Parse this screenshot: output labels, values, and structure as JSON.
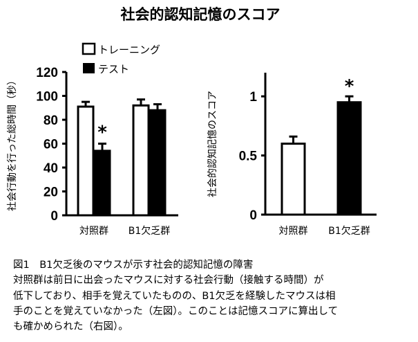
{
  "title": "社会的認知記憶のスコア",
  "chart_data": [
    {
      "type": "bar",
      "ylabel": "社会行動を行った総時間（秒）",
      "ylim": [
        0,
        120
      ],
      "yticks": [
        "0",
        "20",
        "40",
        "60",
        "80",
        "100",
        "120"
      ],
      "categories": [
        "対照群",
        "B1欠乏群"
      ],
      "legend": {
        "placement": "top-left",
        "entries": [
          "トレーニング",
          "テスト"
        ]
      },
      "series": [
        {
          "name": "トレーニング",
          "color": "#ffffff",
          "values": [
            91,
            92
          ],
          "errors": [
            4,
            5
          ]
        },
        {
          "name": "テスト",
          "color": "#000000",
          "values": [
            54,
            88
          ],
          "errors": [
            6,
            5
          ]
        }
      ],
      "annotations": [
        {
          "text": "*",
          "category": "対照群",
          "series": "テスト"
        }
      ]
    },
    {
      "type": "bar",
      "ylabel": "社会的認知記憶のスコア",
      "ylim": [
        0,
        1.2
      ],
      "yticks": [
        "0",
        "0.5",
        "1"
      ],
      "categories": [
        "対照群",
        "B1欠乏群"
      ],
      "values": [
        0.6,
        0.95
      ],
      "errors": [
        0.06,
        0.05
      ],
      "colors": [
        "#ffffff",
        "#000000"
      ],
      "annotations": [
        {
          "text": "*",
          "category": "B1欠乏群"
        }
      ]
    }
  ],
  "caption": [
    "図1　B1欠乏後のマウスが示す社会的認知記憶の障害",
    "対照群は前日に出会ったマウスに対する社会行動（接触する時間）が",
    "低下しており、相手を覚えていたものの、B1欠乏を経験したマウスは相",
    "手のことを覚えていなかった（左図）。このことは記憶スコアに算出して",
    "も確かめられた（右図）。"
  ]
}
